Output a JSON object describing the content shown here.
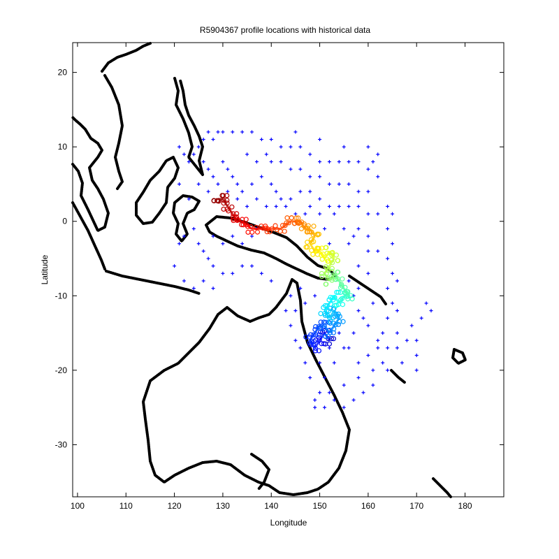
{
  "chart_data": {
    "type": "scatter",
    "title": "R5904367 profile locations with historical data",
    "xlabel": "Longitude",
    "ylabel": "Latitude",
    "xlim": [
      99,
      188
    ],
    "ylim": [
      -37,
      24
    ],
    "xticks": [
      100,
      110,
      120,
      130,
      140,
      150,
      160,
      170,
      180
    ],
    "yticks": [
      -30,
      -20,
      -10,
      0,
      10,
      20
    ],
    "grid": false,
    "legend": "none",
    "series": [
      {
        "kind": "historical",
        "color": "#0000ff",
        "marker": "plus",
        "points": [
          [
            121,
            10
          ],
          [
            122,
            9
          ],
          [
            123,
            8
          ],
          [
            124,
            9
          ],
          [
            125,
            10
          ],
          [
            126,
            11
          ],
          [
            127,
            12
          ],
          [
            128,
            11
          ],
          [
            129,
            12
          ],
          [
            130,
            12
          ],
          [
            132,
            12
          ],
          [
            134,
            12
          ],
          [
            136,
            12
          ],
          [
            138,
            11
          ],
          [
            140,
            11
          ],
          [
            142,
            10
          ],
          [
            144,
            10
          ],
          [
            146,
            10
          ],
          [
            148,
            9
          ],
          [
            150,
            8
          ],
          [
            152,
            8
          ],
          [
            154,
            8
          ],
          [
            156,
            8
          ],
          [
            158,
            8
          ],
          [
            160,
            7
          ],
          [
            162,
            6
          ],
          [
            126,
            8
          ],
          [
            127,
            7
          ],
          [
            128,
            6
          ],
          [
            130,
            8
          ],
          [
            131,
            7
          ],
          [
            132,
            6
          ],
          [
            133,
            5
          ],
          [
            134,
            4
          ],
          [
            136,
            5
          ],
          [
            138,
            6
          ],
          [
            140,
            5
          ],
          [
            141,
            4
          ],
          [
            142,
            3
          ],
          [
            144,
            3
          ],
          [
            146,
            4
          ],
          [
            148,
            4
          ],
          [
            150,
            3
          ],
          [
            152,
            2
          ],
          [
            154,
            2
          ],
          [
            156,
            2
          ],
          [
            158,
            2
          ],
          [
            160,
            1
          ],
          [
            162,
            1
          ],
          [
            164,
            2
          ],
          [
            165,
            1
          ],
          [
            164,
            -1
          ],
          [
            165,
            -3
          ],
          [
            164,
            -5
          ],
          [
            165,
            -7
          ],
          [
            164,
            -9
          ],
          [
            165,
            -11
          ],
          [
            164,
            -13
          ],
          [
            163,
            -15
          ],
          [
            162,
            -16
          ],
          [
            160,
            -14
          ],
          [
            158,
            -12
          ],
          [
            157,
            -10
          ],
          [
            156,
            -8
          ],
          [
            158,
            -6
          ],
          [
            160,
            -4
          ],
          [
            157,
            -2
          ],
          [
            155,
            -1
          ],
          [
            153,
            1
          ],
          [
            151,
            -1
          ],
          [
            152,
            -3
          ],
          [
            156,
            -3
          ],
          [
            158,
            -1
          ],
          [
            160,
            -2
          ],
          [
            162,
            -4
          ],
          [
            160,
            -7
          ],
          [
            158,
            -9
          ],
          [
            161,
            -11
          ],
          [
            159,
            -13
          ],
          [
            157,
            -15
          ],
          [
            155,
            -17
          ],
          [
            153,
            -19
          ],
          [
            151,
            -21
          ],
          [
            150,
            -23
          ],
          [
            149,
            -24
          ],
          [
            152,
            -23
          ],
          [
            155,
            -22
          ],
          [
            158,
            -21
          ],
          [
            161,
            -20
          ],
          [
            164,
            -20
          ],
          [
            167,
            -19
          ],
          [
            170,
            -18
          ],
          [
            168,
            -16
          ],
          [
            166,
            -15
          ],
          [
            169,
            -14
          ],
          [
            171,
            -13
          ],
          [
            173,
            -12
          ],
          [
            172,
            -11
          ],
          [
            170,
            -16
          ],
          [
            170,
            -20
          ],
          [
            145,
            -12
          ],
          [
            147,
            -11
          ],
          [
            149,
            -10
          ],
          [
            146,
            -9
          ],
          [
            144,
            -10
          ],
          [
            143,
            -12
          ],
          [
            144,
            -14
          ],
          [
            145,
            -16
          ],
          [
            146,
            -17
          ],
          [
            147,
            -19
          ],
          [
            148,
            -21
          ],
          [
            150,
            -19
          ],
          [
            152,
            -17
          ],
          [
            154,
            -15
          ],
          [
            156,
            -17
          ],
          [
            158,
            -19
          ],
          [
            160,
            -18
          ],
          [
            162,
            -17
          ],
          [
            164,
            -17
          ],
          [
            166,
            -17
          ],
          [
            125,
            -3
          ],
          [
            126,
            -4
          ],
          [
            127,
            -5
          ],
          [
            128,
            -6
          ],
          [
            130,
            -7
          ],
          [
            132,
            -7
          ],
          [
            134,
            -6
          ],
          [
            136,
            -6
          ],
          [
            138,
            -7
          ],
          [
            140,
            -8
          ],
          [
            128,
            -2
          ],
          [
            130,
            -3
          ],
          [
            132,
            -2
          ],
          [
            134,
            -3
          ],
          [
            136,
            -2
          ],
          [
            137,
            -1
          ],
          [
            124,
            -1
          ],
          [
            122,
            -2
          ],
          [
            121,
            -3
          ],
          [
            120,
            -6
          ],
          [
            126,
            -8
          ],
          [
            128,
            -9
          ],
          [
            124,
            -9
          ],
          [
            122,
            -8
          ],
          [
            140,
            8
          ],
          [
            142,
            8
          ],
          [
            144,
            7
          ],
          [
            146,
            7
          ],
          [
            148,
            6
          ],
          [
            150,
            6
          ],
          [
            152,
            5
          ],
          [
            154,
            5
          ],
          [
            156,
            5
          ],
          [
            158,
            4
          ],
          [
            160,
            4
          ],
          [
            135,
            9
          ],
          [
            137,
            8
          ],
          [
            139,
            9
          ],
          [
            145,
            12
          ],
          [
            150,
            11
          ],
          [
            155,
            10
          ],
          [
            160,
            10
          ],
          [
            162,
            9
          ],
          [
            161,
            8
          ],
          [
            150,
            1
          ],
          [
            148,
            2
          ],
          [
            147,
            1
          ],
          [
            145,
            1
          ],
          [
            143,
            2
          ],
          [
            141,
            2
          ],
          [
            139,
            2
          ],
          [
            137,
            3
          ],
          [
            135,
            2
          ],
          [
            133,
            3
          ],
          [
            131,
            4
          ],
          [
            129,
            5
          ],
          [
            127,
            4
          ],
          [
            125,
            5
          ],
          [
            123,
            3
          ],
          [
            121,
            5
          ],
          [
            166,
            -8
          ],
          [
            166,
            -12
          ],
          [
            163,
            -19
          ],
          [
            161,
            -22
          ],
          [
            159,
            -23
          ],
          [
            157,
            -24
          ],
          [
            155,
            -25
          ],
          [
            153,
            -24
          ],
          [
            151,
            -25
          ],
          [
            149,
            -25
          ]
        ]
      },
      {
        "kind": "float-track",
        "colormap": "jet",
        "points": [
          [
            152,
            -16
          ],
          [
            151,
            -15
          ],
          [
            150,
            -16
          ],
          [
            149,
            -17
          ],
          [
            148,
            -16
          ],
          [
            149,
            -15
          ],
          [
            150,
            -14
          ],
          [
            151,
            -14
          ],
          [
            152,
            -15
          ],
          [
            153,
            -14
          ],
          [
            154,
            -13
          ],
          [
            153,
            -12
          ],
          [
            152,
            -13
          ],
          [
            151,
            -12
          ],
          [
            152,
            -11
          ],
          [
            153,
            -10
          ],
          [
            154,
            -11
          ],
          [
            155,
            -10
          ],
          [
            156,
            -10
          ],
          [
            155,
            -9
          ],
          [
            154,
            -8
          ],
          [
            153,
            -7
          ],
          [
            152,
            -8
          ],
          [
            151,
            -7
          ],
          [
            152,
            -6
          ],
          [
            153,
            -5
          ],
          [
            152,
            -4
          ],
          [
            151,
            -5
          ],
          [
            150,
            -4
          ],
          [
            149,
            -4
          ],
          [
            148,
            -3
          ],
          [
            149,
            -2
          ],
          [
            148,
            -1
          ],
          [
            147,
            -1
          ],
          [
            146,
            0
          ],
          [
            145,
            0
          ],
          [
            144,
            0
          ],
          [
            142,
            -1
          ],
          [
            140,
            -1
          ],
          [
            138,
            -1
          ],
          [
            136,
            -1
          ],
          [
            134,
            0
          ],
          [
            133,
            0
          ],
          [
            132,
            1
          ],
          [
            131,
            2
          ],
          [
            130,
            3
          ],
          [
            129,
            3
          ]
        ]
      }
    ]
  }
}
